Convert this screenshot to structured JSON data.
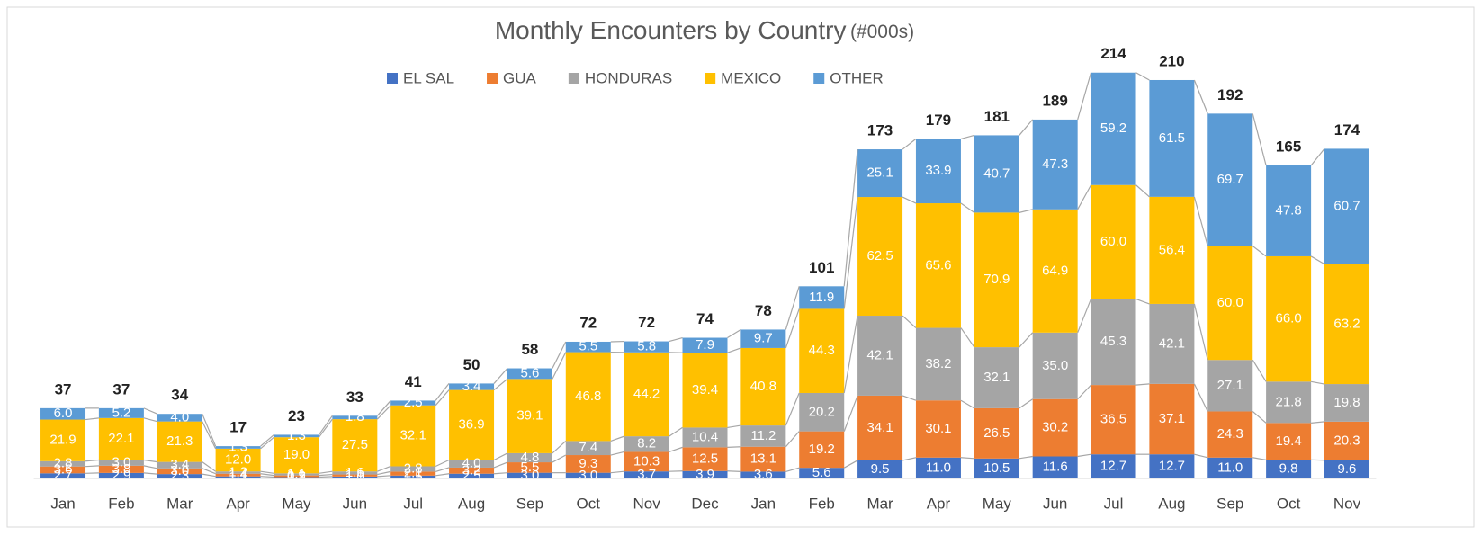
{
  "chart_data": {
    "type": "stacked_bar",
    "title": "Monthly Encounters by Country",
    "title_note": "(#000s)",
    "categories": [
      "Jan",
      "Feb",
      "Mar",
      "Apr",
      "May",
      "Jun",
      "Jul",
      "Aug",
      "Sep",
      "Oct",
      "Nov",
      "Dec",
      "Jan",
      "Feb",
      "Mar",
      "Apr",
      "May",
      "Jun",
      "Jul",
      "Aug",
      "Sep",
      "Oct",
      "Nov"
    ],
    "series": [
      {
        "name": "EL SAL",
        "color": "#4472c4",
        "values": [
          2.7,
          2.9,
          2.3,
          1.1,
          0.7,
          1.0,
          1.5,
          2.5,
          3.0,
          3.0,
          3.7,
          3.9,
          3.6,
          5.6,
          9.5,
          11.0,
          10.5,
          11.6,
          12.7,
          12.7,
          11.0,
          9.8,
          9.6
        ],
        "value_labels": [
          "2.7",
          "2.9",
          "2.3",
          "1.1",
          "0.7",
          "1.0",
          "1.5",
          "2.5",
          "3.0",
          "3.0",
          "3.7",
          "3.9",
          "3.6",
          "5.6",
          "9.5",
          "11.0",
          "10.5",
          "11.6",
          "12.7",
          "12.7",
          "11.0",
          "9.8",
          "9.6"
        ]
      },
      {
        "name": "GUA",
        "color": "#ed7d31",
        "values": [
          3.6,
          3.8,
          3.0,
          1.4,
          0.9,
          1.1,
          2.1,
          3.2,
          5.5,
          9.3,
          10.3,
          12.5,
          13.1,
          19.2,
          34.1,
          30.1,
          26.5,
          30.2,
          36.5,
          37.1,
          24.3,
          19.4,
          20.3
        ],
        "value_labels": [
          "3.6",
          "3.8",
          "3.0",
          "1.4",
          "0.9",
          "1.1",
          "2.1",
          "3.2",
          "5.5",
          "9.3",
          "10.3",
          "12.5",
          "13.1",
          "19.2",
          "34.1",
          "30.1",
          "26.5",
          "30.2",
          "36.5",
          "37.1",
          "24.3",
          "19.4",
          "20.3"
        ]
      },
      {
        "name": "HONDURAS",
        "color": "#a5a5a5",
        "values": [
          2.8,
          3.0,
          3.4,
          1.2,
          1.1,
          1.6,
          2.8,
          4.0,
          4.8,
          7.4,
          8.2,
          10.4,
          11.2,
          20.2,
          42.1,
          38.2,
          32.1,
          35.0,
          45.3,
          42.1,
          27.1,
          21.8,
          19.8
        ],
        "value_labels": [
          "2.8",
          "3.0",
          "3.4",
          "1.2",
          "1.1",
          "1.6",
          "2.8",
          "4.0",
          "4.8",
          "7.4",
          "8.2",
          "10.4",
          "11.2",
          "20.2",
          "42.1",
          "38.2",
          "32.1",
          "35.0",
          "45.3",
          "42.1",
          "27.1",
          "21.8",
          "19.8"
        ]
      },
      {
        "name": "MEXICO",
        "color": "#ffc000",
        "values": [
          21.9,
          22.1,
          21.3,
          12.0,
          19.0,
          27.5,
          32.1,
          36.9,
          39.1,
          46.8,
          44.2,
          39.4,
          40.8,
          44.3,
          62.5,
          65.6,
          70.9,
          64.9,
          60.0,
          56.4,
          60.0,
          66.0,
          63.2
        ],
        "value_labels": [
          "21.9",
          "22.1",
          "21.3",
          "12.0",
          "19.0",
          "27.5",
          "32.1",
          "36.9",
          "39.1",
          "46.8",
          "44.2",
          "39.4",
          "40.8",
          "44.3",
          "62.5",
          "65.6",
          "70.9",
          "64.9",
          "60.0",
          "56.4",
          "60.0",
          "66.0",
          "63.2"
        ]
      },
      {
        "name": "OTHER",
        "color": "#5b9bd5",
        "values": [
          6.0,
          5.2,
          4.0,
          1.3,
          1.3,
          1.8,
          2.5,
          3.4,
          5.6,
          5.5,
          5.8,
          7.9,
          9.7,
          11.9,
          25.1,
          33.9,
          40.7,
          47.3,
          59.2,
          61.5,
          69.7,
          47.8,
          60.7
        ],
        "value_labels": [
          "6.0",
          "5.2",
          "4.0",
          "1.3",
          "1.3",
          "1.8",
          "2.5",
          "3.4",
          "5.6",
          "5.5",
          "5.8",
          "7.9",
          "9.7",
          "11.9",
          "25.1",
          "33.9",
          "40.7",
          "47.3",
          "59.2",
          "61.5",
          "69.7",
          "47.8",
          "60.7"
        ]
      }
    ],
    "totals": [
      37,
      37,
      34,
      17,
      23,
      33,
      41,
      50,
      58,
      72,
      72,
      74,
      78,
      101,
      173,
      179,
      181,
      189,
      214,
      210,
      192,
      165,
      174
    ],
    "ylim": [
      0,
      224
    ]
  }
}
